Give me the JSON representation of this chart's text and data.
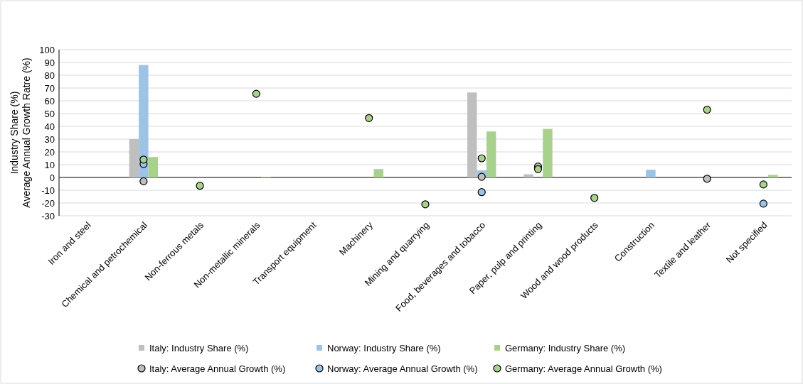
{
  "chart_data": {
    "type": "bar",
    "ylabel": "Industry Share (%)\nAverage Annual Growth Ratre (%)",
    "categories": [
      "Iron and steel",
      "Chemical and petrochemical",
      "Non-ferrous metals",
      "Non-metallic minerals",
      "Transport equipment",
      "Machinery",
      "Mining and quarrying",
      "Food, beverages and tobacco",
      "Paper, pulp and printing",
      "Wood and wood products",
      "Construction",
      "Textile and leather",
      "Not specified"
    ],
    "ylim": [
      -30,
      100
    ],
    "yticks": [
      -30,
      -20,
      -10,
      0,
      10,
      20,
      30,
      40,
      50,
      60,
      70,
      80,
      90,
      100
    ],
    "grid": "y",
    "legend": "bottom",
    "marker": "circle",
    "series": [
      {
        "name": "Italy: Industry Share (%)",
        "color": "#bfbfbf",
        "values": [
          0,
          30,
          0,
          0,
          0,
          0,
          0,
          66.5,
          2.5,
          0,
          0,
          0,
          0
        ]
      },
      {
        "name": "Norway: Industry Share (%)",
        "color": "#9dc3e6",
        "values": [
          0,
          88,
          0,
          0,
          0,
          0,
          0,
          5.5,
          0,
          0,
          6,
          0,
          0
        ]
      },
      {
        "name": "Germany: Industry Share (%)",
        "color": "#a9d18e",
        "values": [
          0,
          16,
          0,
          0.5,
          0,
          6.5,
          0,
          36,
          38,
          0,
          0,
          0,
          2
        ]
      },
      {
        "name": "Italy: Average Annual Growth (%)",
        "type": "scatter",
        "color": "#bfbfbf",
        "values": [
          null,
          -3,
          null,
          null,
          null,
          null,
          null,
          0.5,
          8.5,
          null,
          null,
          -1,
          null
        ]
      },
      {
        "name": "Norway: Average Annual Growth (%)",
        "type": "scatter",
        "color": "#9dc3e6",
        "values": [
          null,
          10.5,
          null,
          null,
          null,
          null,
          null,
          -11.5,
          null,
          null,
          null,
          null,
          -20.5
        ]
      },
      {
        "name": "Germany: Average Annual Growth (%)",
        "type": "scatter",
        "color": "#a9d18e",
        "values": [
          null,
          14,
          -6.5,
          65.5,
          null,
          46.5,
          -21,
          15,
          6.5,
          -16,
          null,
          53,
          -5.5
        ]
      }
    ]
  }
}
